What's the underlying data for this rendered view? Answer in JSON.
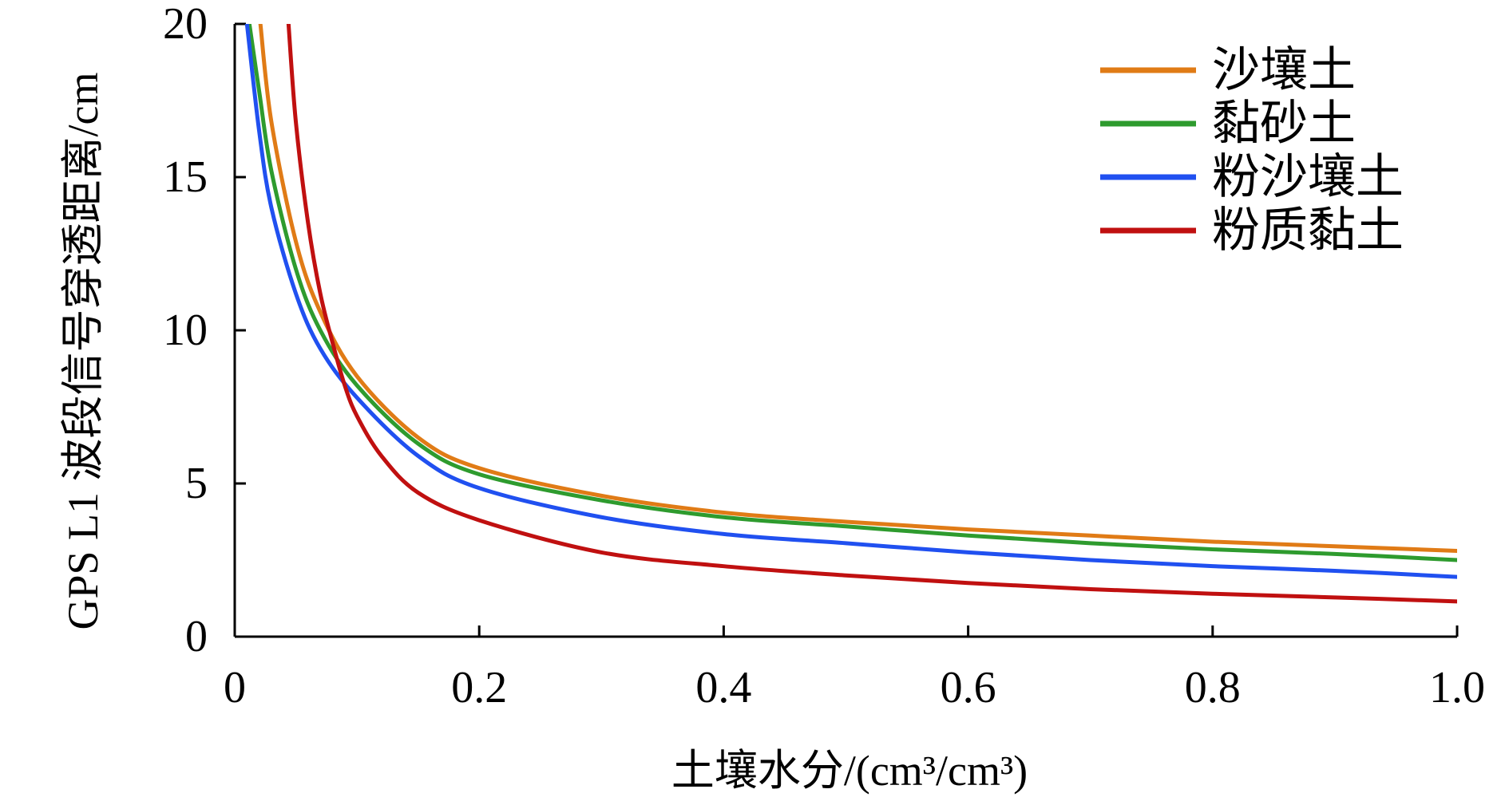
{
  "chart_data": {
    "type": "line",
    "title": "",
    "xlabel": "土壤水分/(cm³/cm³)",
    "ylabel": "GPS L1 波段信号穿透距离/cm",
    "xlim": [
      0,
      1.0
    ],
    "ylim": [
      0,
      20
    ],
    "xticks": [
      0,
      0.2,
      0.4,
      0.6,
      0.8,
      1.0
    ],
    "xtick_labels": [
      "0",
      "0.2",
      "0.4",
      "0.6",
      "0.8",
      "1.0"
    ],
    "yticks": [
      0,
      5,
      10,
      15,
      20
    ],
    "ytick_labels": [
      "0",
      "5",
      "10",
      "15",
      "20"
    ],
    "grid": false,
    "legend_position": "top-right",
    "series": [
      {
        "name": "沙壤土",
        "color": "#E07B16",
        "x": [
          0.021,
          0.03,
          0.05,
          0.07,
          0.1,
          0.15,
          0.2,
          0.3,
          0.4,
          0.5,
          0.6,
          0.7,
          0.8,
          0.9,
          1.0
        ],
        "y": [
          20,
          16.8,
          12.9,
          10.6,
          8.5,
          6.5,
          5.5,
          4.6,
          4.05,
          3.75,
          3.5,
          3.3,
          3.1,
          2.95,
          2.8
        ]
      },
      {
        "name": "黏砂土",
        "color": "#2E9B2E",
        "x": [
          0.012,
          0.02,
          0.03,
          0.05,
          0.07,
          0.1,
          0.15,
          0.2,
          0.3,
          0.4,
          0.5,
          0.6,
          0.7,
          0.8,
          0.9,
          1.0
        ],
        "y": [
          20,
          17.8,
          15.2,
          12.0,
          10.0,
          8.2,
          6.3,
          5.3,
          4.45,
          3.9,
          3.6,
          3.3,
          3.05,
          2.85,
          2.7,
          2.5
        ]
      },
      {
        "name": "粉沙壤土",
        "color": "#2050F0",
        "x": [
          0.01,
          0.02,
          0.03,
          0.05,
          0.07,
          0.1,
          0.15,
          0.2,
          0.3,
          0.4,
          0.5,
          0.6,
          0.7,
          0.8,
          0.9,
          1.0
        ],
        "y": [
          20,
          16.5,
          14.0,
          11.2,
          9.4,
          7.8,
          5.9,
          4.85,
          3.9,
          3.35,
          3.05,
          2.75,
          2.5,
          2.3,
          2.15,
          1.95
        ]
      },
      {
        "name": "粉质黏土",
        "color": "#C01010",
        "x": [
          0.044,
          0.05,
          0.06,
          0.07,
          0.08,
          0.09,
          0.1,
          0.12,
          0.15,
          0.2,
          0.3,
          0.4,
          0.5,
          0.6,
          0.7,
          0.8,
          0.9,
          1.0
        ],
        "y": [
          20,
          16.8,
          13.5,
          11.2,
          9.6,
          8.2,
          7.2,
          5.9,
          4.7,
          3.8,
          2.75,
          2.3,
          2.0,
          1.75,
          1.55,
          1.4,
          1.28,
          1.15
        ]
      }
    ]
  }
}
